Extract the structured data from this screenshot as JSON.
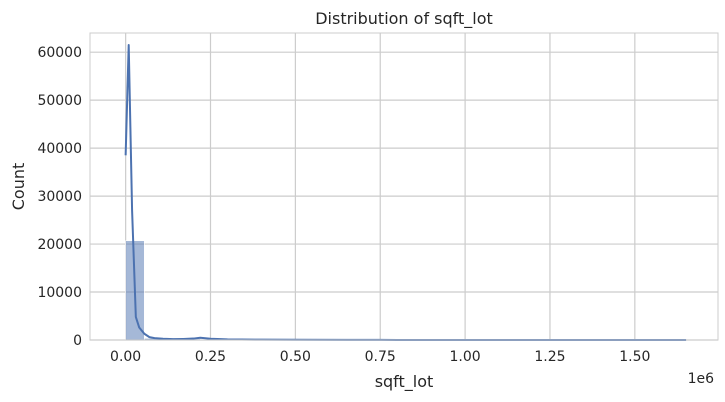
{
  "chart_data": {
    "type": "bar",
    "title": "Distribution of sqft_lot",
    "xlabel": "sqft_lot",
    "ylabel": "Count",
    "x_offset_label": "1e6",
    "xlim": [
      -105000,
      1745000
    ],
    "ylim": [
      0,
      64000
    ],
    "x_ticks": [
      0,
      250000,
      500000,
      750000,
      1000000,
      1250000,
      1500000
    ],
    "x_tick_labels": [
      "0.00",
      "0.25",
      "0.50",
      "0.75",
      "1.00",
      "1.25",
      "1.50"
    ],
    "y_ticks": [
      0,
      10000,
      20000,
      30000,
      40000,
      50000,
      60000
    ],
    "y_tick_labels": [
      "0",
      "10000",
      "20000",
      "30000",
      "40000",
      "50000",
      "60000"
    ],
    "grid": true,
    "histogram": {
      "bin_edges": [
        0,
        55000,
        110000,
        165000,
        220000,
        275000,
        330000,
        385000,
        440000,
        495000,
        550000,
        605000,
        660000,
        715000,
        770000,
        825000,
        880000,
        935000,
        990000,
        1045000,
        1100000,
        1155000,
        1210000,
        1265000,
        1320000,
        1375000,
        1430000,
        1485000,
        1540000,
        1595000,
        1651000
      ],
      "counts": [
        20700,
        350,
        170,
        230,
        120,
        60,
        40,
        30,
        25,
        15,
        10,
        8,
        5,
        5,
        4,
        3,
        2,
        2,
        2,
        1,
        1,
        1,
        1,
        1,
        0,
        0,
        0,
        0,
        0,
        1
      ]
    },
    "kde": {
      "x": [
        0,
        9000,
        19000,
        30000,
        40000,
        55000,
        70000,
        85000,
        110000,
        140000,
        170000,
        200000,
        220000,
        250000,
        300000,
        400000,
        500000,
        650000,
        800000,
        1000000,
        1200000,
        1400000,
        1651000
      ],
      "y": [
        38500,
        61500,
        27000,
        4800,
        2600,
        1300,
        600,
        400,
        250,
        180,
        220,
        300,
        480,
        250,
        120,
        70,
        40,
        20,
        10,
        5,
        3,
        2,
        1
      ]
    },
    "colors": {
      "bar_fill": "#4c72b0",
      "bar_opacity": 0.5,
      "line": "#4c72b0",
      "grid": "#cccccc"
    }
  }
}
